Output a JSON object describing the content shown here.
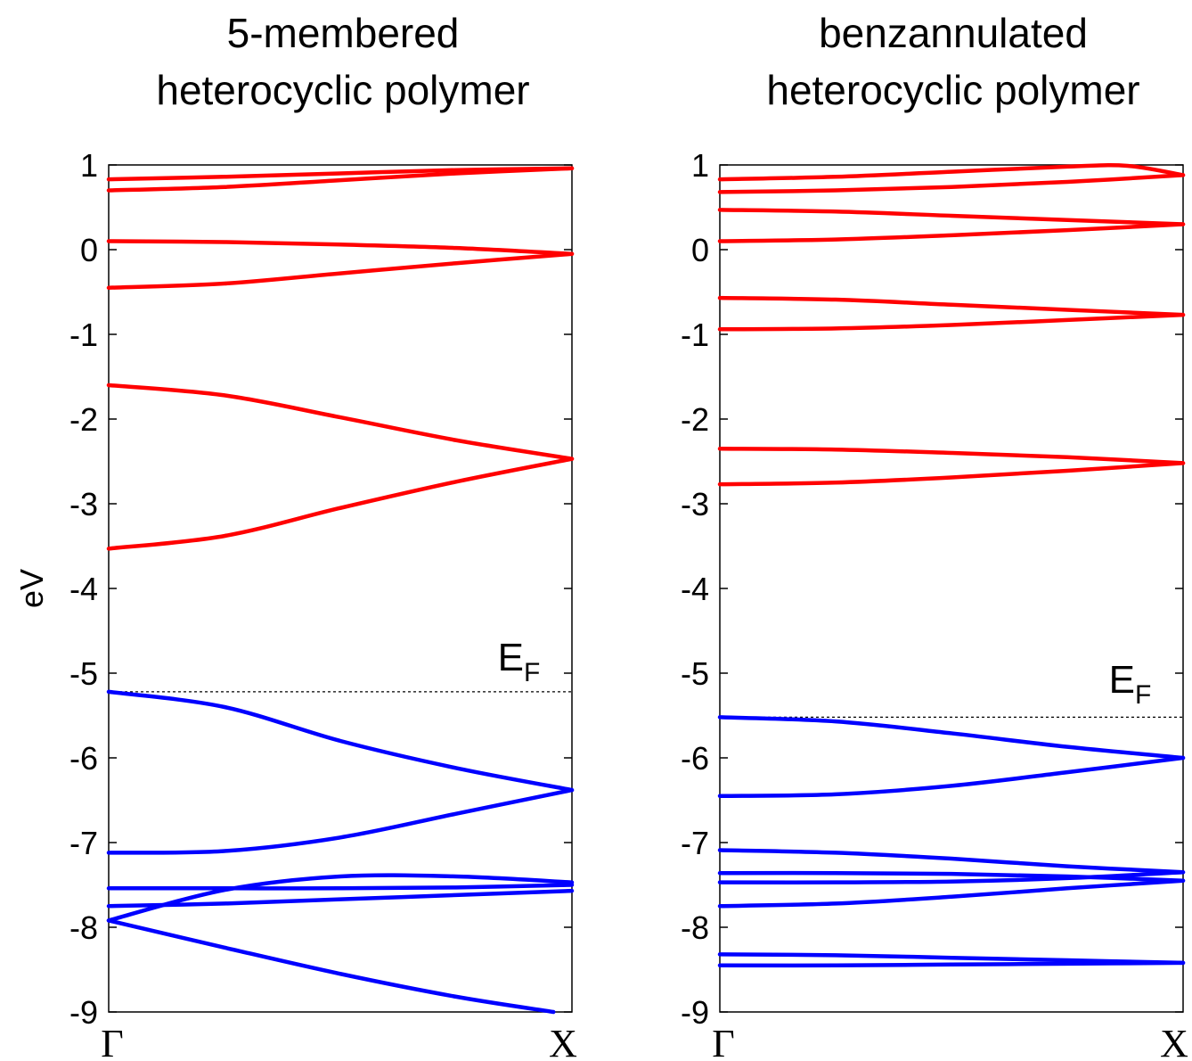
{
  "chart_data": [
    {
      "type": "line",
      "title": "5-membered heterocyclic polymer",
      "title_lines": [
        "5-membered",
        "heterocyclic polymer"
      ],
      "ylabel": "eV",
      "ylim": [
        -9,
        1
      ],
      "yticks": [
        1,
        0,
        -1,
        -2,
        -3,
        -4,
        -5,
        -6,
        -7,
        -8,
        -9
      ],
      "xlim": [
        0,
        1
      ],
      "xtick_labels": [
        "Γ",
        "X"
      ],
      "grid": false,
      "fermi_level": -5.22,
      "fermi_label": "E",
      "fermi_sub": "F",
      "colors": {
        "conduction": "#ff0000",
        "valence": "#0000ff"
      },
      "series": [
        {
          "group": "conduction",
          "x": [
            0,
            0.25,
            0.5,
            0.75,
            1
          ],
          "y": [
            0.83,
            0.86,
            0.9,
            0.94,
            0.96
          ]
        },
        {
          "group": "conduction",
          "x": [
            0,
            0.25,
            0.5,
            0.75,
            1
          ],
          "y": [
            0.7,
            0.74,
            0.82,
            0.9,
            0.96
          ]
        },
        {
          "group": "conduction",
          "x": [
            0,
            0.25,
            0.5,
            0.75,
            1
          ],
          "y": [
            0.1,
            0.09,
            0.06,
            0.02,
            -0.05
          ]
        },
        {
          "group": "conduction",
          "x": [
            0,
            0.25,
            0.5,
            0.75,
            1
          ],
          "y": [
            -0.45,
            -0.4,
            -0.28,
            -0.16,
            -0.05
          ]
        },
        {
          "group": "conduction",
          "x": [
            0,
            0.25,
            0.5,
            0.75,
            1
          ],
          "y": [
            -1.6,
            -1.72,
            -1.98,
            -2.25,
            -2.47
          ]
        },
        {
          "group": "conduction",
          "x": [
            0,
            0.25,
            0.5,
            0.75,
            1
          ],
          "y": [
            -3.53,
            -3.38,
            -3.05,
            -2.74,
            -2.47
          ]
        },
        {
          "group": "valence",
          "x": [
            0,
            0.25,
            0.5,
            0.75,
            1
          ],
          "y": [
            -5.22,
            -5.4,
            -5.8,
            -6.12,
            -6.38
          ]
        },
        {
          "group": "valence",
          "x": [
            0,
            0.25,
            0.5,
            0.75,
            1
          ],
          "y": [
            -7.12,
            -7.1,
            -6.94,
            -6.66,
            -6.38
          ]
        },
        {
          "group": "valence",
          "x": [
            0,
            0.25,
            0.5,
            0.75,
            1
          ],
          "y": [
            -7.54,
            -7.54,
            -7.54,
            -7.53,
            -7.5
          ]
        },
        {
          "group": "valence",
          "x": [
            0,
            0.25,
            0.5,
            0.75,
            1
          ],
          "y": [
            -7.75,
            -7.72,
            -7.67,
            -7.62,
            -7.57
          ]
        },
        {
          "group": "valence",
          "x": [
            0,
            0.25,
            0.5,
            0.75,
            1
          ],
          "y": [
            -7.92,
            -7.56,
            -7.4,
            -7.4,
            -7.47
          ]
        },
        {
          "group": "valence",
          "x": [
            0,
            0.25,
            0.5,
            0.75,
            0.96
          ],
          "y": [
            -7.92,
            -8.24,
            -8.55,
            -8.82,
            -9.0
          ]
        }
      ]
    },
    {
      "type": "line",
      "title": "benzannulated heterocyclic polymer",
      "title_lines": [
        "benzannulated",
        "heterocyclic polymer"
      ],
      "ylabel": "",
      "ylim": [
        -9,
        1
      ],
      "yticks": [
        1,
        0,
        -1,
        -2,
        -3,
        -4,
        -5,
        -6,
        -7,
        -8,
        -9
      ],
      "xlim": [
        0,
        1
      ],
      "xtick_labels": [
        "Γ",
        "X"
      ],
      "grid": false,
      "fermi_level": -5.52,
      "fermi_label": "E",
      "fermi_sub": "F",
      "colors": {
        "conduction": "#ff0000",
        "valence": "#0000ff"
      },
      "series": [
        {
          "group": "conduction",
          "x": [
            0,
            0.25,
            0.5,
            0.75,
            0.88,
            1
          ],
          "y": [
            0.83,
            0.86,
            0.92,
            0.98,
            0.99,
            0.88
          ]
        },
        {
          "group": "conduction",
          "x": [
            0,
            0.25,
            0.5,
            0.75,
            1
          ],
          "y": [
            0.68,
            0.7,
            0.74,
            0.8,
            0.88
          ]
        },
        {
          "group": "conduction",
          "x": [
            0,
            0.25,
            0.5,
            0.75,
            1
          ],
          "y": [
            0.47,
            0.45,
            0.4,
            0.35,
            0.3
          ]
        },
        {
          "group": "conduction",
          "x": [
            0,
            0.25,
            0.5,
            0.75,
            1
          ],
          "y": [
            0.1,
            0.12,
            0.17,
            0.23,
            0.3
          ]
        },
        {
          "group": "conduction",
          "x": [
            0,
            0.25,
            0.5,
            0.75,
            1
          ],
          "y": [
            -0.57,
            -0.59,
            -0.65,
            -0.71,
            -0.77
          ]
        },
        {
          "group": "conduction",
          "x": [
            0,
            0.25,
            0.5,
            0.75,
            1
          ],
          "y": [
            -0.94,
            -0.93,
            -0.89,
            -0.83,
            -0.77
          ]
        },
        {
          "group": "conduction",
          "x": [
            0,
            0.25,
            0.5,
            0.75,
            1
          ],
          "y": [
            -2.35,
            -2.36,
            -2.4,
            -2.45,
            -2.52
          ]
        },
        {
          "group": "conduction",
          "x": [
            0,
            0.25,
            0.5,
            0.75,
            1
          ],
          "y": [
            -2.77,
            -2.75,
            -2.69,
            -2.61,
            -2.52
          ]
        },
        {
          "group": "valence",
          "x": [
            0,
            0.25,
            0.5,
            0.75,
            1
          ],
          "y": [
            -5.52,
            -5.57,
            -5.71,
            -5.87,
            -6.0
          ]
        },
        {
          "group": "valence",
          "x": [
            0,
            0.25,
            0.5,
            0.75,
            1
          ],
          "y": [
            -6.45,
            -6.43,
            -6.33,
            -6.17,
            -6.0
          ]
        },
        {
          "group": "valence",
          "x": [
            0,
            0.25,
            0.5,
            0.75,
            1
          ],
          "y": [
            -7.09,
            -7.12,
            -7.19,
            -7.28,
            -7.35
          ]
        },
        {
          "group": "valence",
          "x": [
            0,
            0.25,
            0.5,
            0.75,
            1
          ],
          "y": [
            -7.36,
            -7.36,
            -7.37,
            -7.4,
            -7.45
          ]
        },
        {
          "group": "valence",
          "x": [
            0,
            0.25,
            0.5,
            0.75,
            1
          ],
          "y": [
            -7.47,
            -7.47,
            -7.46,
            -7.42,
            -7.35
          ]
        },
        {
          "group": "valence",
          "x": [
            0,
            0.25,
            0.5,
            0.75,
            1
          ],
          "y": [
            -7.75,
            -7.72,
            -7.64,
            -7.54,
            -7.45
          ]
        },
        {
          "group": "valence",
          "x": [
            0,
            0.25,
            0.5,
            0.75,
            1
          ],
          "y": [
            -8.32,
            -8.33,
            -8.36,
            -8.39,
            -8.42
          ]
        },
        {
          "group": "valence",
          "x": [
            0,
            0.25,
            0.5,
            0.75,
            1
          ],
          "y": [
            -8.45,
            -8.45,
            -8.44,
            -8.43,
            -8.42
          ]
        }
      ]
    }
  ]
}
